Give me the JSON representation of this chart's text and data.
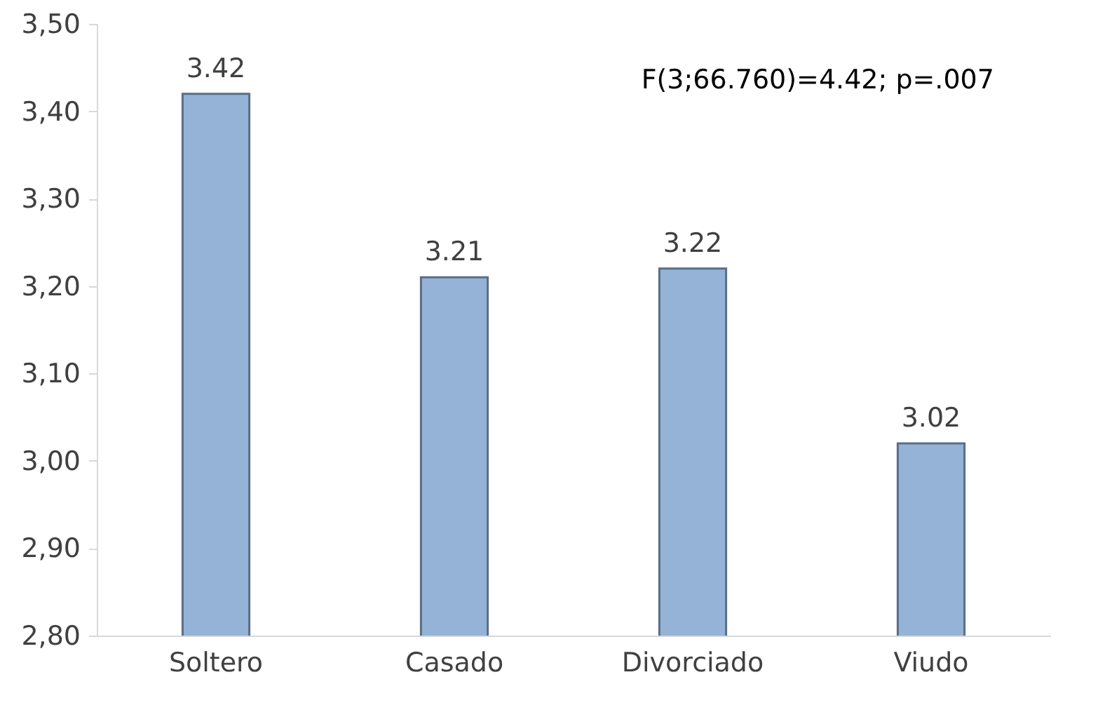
{
  "chart_data": {
    "type": "bar",
    "categories": [
      "Soltero",
      "Casado",
      "Divorciado",
      "Viudo"
    ],
    "values": [
      3.42,
      3.21,
      3.22,
      3.02
    ],
    "color": "#95b3d7",
    "ylim": [
      2.8,
      3.5
    ],
    "yticks": [
      {
        "value": 2.8,
        "label": "2,80"
      },
      {
        "value": 2.9,
        "label": "2,90"
      },
      {
        "value": 3.0,
        "label": "3,00"
      },
      {
        "value": 3.1,
        "label": "3,10"
      },
      {
        "value": 3.2,
        "label": "3,20"
      },
      {
        "value": 3.3,
        "label": "3,30"
      },
      {
        "value": 3.4,
        "label": "3,40"
      },
      {
        "value": 3.5,
        "label": "3,50"
      }
    ],
    "data_labels": true,
    "grid": false,
    "annotations": [
      "F(3;66.760)=4.42; p=.007"
    ]
  }
}
